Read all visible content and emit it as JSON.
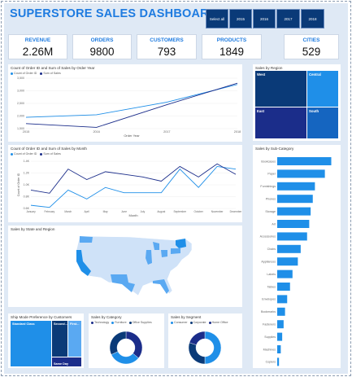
{
  "header": {
    "title": "SUPERSTORE SALES DASHBOARD"
  },
  "year_slicer": [
    "Select all",
    "2015",
    "2016",
    "2017",
    "2018"
  ],
  "kpis": [
    {
      "label": "REVENUE",
      "value": "2.26M"
    },
    {
      "label": "ORDERS",
      "value": "9800"
    },
    {
      "label": "CUSTOMERS",
      "value": "793"
    },
    {
      "label": "PRODUCTS",
      "value": "1849"
    },
    {
      "label": "CITIES",
      "value": "529"
    }
  ],
  "colors": {
    "light": "#1f8fe8",
    "dark": "#1b2d8a",
    "deep": "#0a3a78",
    "accent": "#1e7be0"
  },
  "year_chart": {
    "title": "Count of Order ID and Sum of Sales by Order Year",
    "legend": [
      "Count of Order ID",
      "Sum of Sales"
    ],
    "yticks": [
      "3,500",
      "3,000",
      "2,500",
      "2,000",
      "1,500"
    ],
    "xlabel": "Order Year"
  },
  "month_chart": {
    "title": "Count of Order ID and Sum of Sales by Month",
    "legend": [
      "Count of Order ID",
      "Sum of Sales"
    ],
    "yticks": [
      "1.4K",
      "1.2K",
      "1.0K",
      "0.8K",
      "0.6K"
    ],
    "ylabel": "Count of Order ID",
    "xlabel": "Month"
  },
  "map_panel": {
    "title": "Sales by State and Region"
  },
  "region_panel": {
    "title": "Sales by Region",
    "tiles": [
      {
        "label": "West",
        "color": "#0a3a78"
      },
      {
        "label": "Central",
        "color": "#1f8fe8"
      },
      {
        "label": "East",
        "color": "#1b2d8a"
      },
      {
        "label": "South",
        "color": "#1565c0"
      }
    ]
  },
  "subcat_panel": {
    "title": "Sales by Sub-Category",
    "xticks": [
      "0K",
      "100K"
    ]
  },
  "shipmode_panel": {
    "title": "Ship Mode Preference by Customers",
    "tiles": [
      {
        "label": "Standard Class",
        "color": "#1f8fe8"
      },
      {
        "label": "Second...",
        "color": "#0a3a78"
      },
      {
        "label": "First...",
        "color": "#5aa9f2"
      },
      {
        "label": "Same Day",
        "color": "#1b2d8a"
      }
    ]
  },
  "category_panel": {
    "title": "Sales by Category",
    "legend": [
      "Technology",
      "Furniture",
      "Office Supplies"
    ],
    "colors": [
      "#1b2d8a",
      "#1f8fe8",
      "#0a3a78"
    ]
  },
  "segment_panel": {
    "title": "Sales by Segment",
    "legend": [
      "Consumer",
      "Corporate",
      "Home Office"
    ],
    "colors": [
      "#1f8fe8",
      "#0a3a78",
      "#1b2d8a"
    ]
  },
  "chart_data": [
    {
      "type": "line",
      "title": "Count of Order ID and Sum of Sales by Order Year",
      "xlabel": "Order Year",
      "categories": [
        "2015",
        "2016",
        "2017",
        "2018"
      ],
      "ylim": [
        1500,
        3500
      ],
      "series": [
        {
          "name": "Count of Order ID",
          "values": [
            1950,
            2050,
            2550,
            3250
          ]
        },
        {
          "name": "Sum of Sales",
          "values": [
            1700,
            1550,
            2450,
            3300
          ]
        }
      ]
    },
    {
      "type": "line",
      "title": "Count of Order ID and Sum of Sales by Month",
      "xlabel": "Month",
      "ylabel": "Count of Order ID",
      "categories": [
        "January",
        "February",
        "March",
        "April",
        "May",
        "June",
        "July",
        "August",
        "September",
        "October",
        "November",
        "December"
      ],
      "ylim": [
        500,
        1400
      ],
      "series": [
        {
          "name": "Count of Order ID",
          "values": [
            560,
            520,
            850,
            680,
            900,
            800,
            800,
            800,
            1250,
            900,
            1300,
            1250
          ]
        },
        {
          "name": "Sum of Sales",
          "values": [
            850,
            790,
            1250,
            1050,
            1200,
            1150,
            1100,
            1020,
            1300,
            1100,
            1350,
            1150
          ]
        }
      ]
    },
    {
      "type": "bar",
      "title": "Sales by Sub-Category",
      "xticks": [
        "0K",
        "100K"
      ],
      "categories": [
        "Bookcases",
        "Paper",
        "Furnishings",
        "Phones",
        "Storage",
        "Art",
        "Accessories",
        "Chairs",
        "Appliances",
        "Labels",
        "Tables",
        "Envelopes",
        "Bookmarks",
        "Fasteners",
        "Supplies",
        "Machines",
        "Copiers"
      ],
      "values": [
        152,
        134,
        106,
        100,
        94,
        90,
        84,
        66,
        58,
        43,
        36,
        28,
        22,
        18,
        14,
        10,
        5
      ],
      "xlim": [
        0,
        160
      ]
    },
    {
      "type": "pie",
      "title": "Sales by Category",
      "labels": [
        "Technology",
        "Furniture",
        "Office Supplies"
      ],
      "values": [
        36,
        32,
        32
      ]
    },
    {
      "type": "pie",
      "title": "Sales by Segment",
      "labels": [
        "Consumer",
        "Corporate",
        "Home Office"
      ],
      "values": [
        50,
        30,
        20
      ]
    }
  ]
}
